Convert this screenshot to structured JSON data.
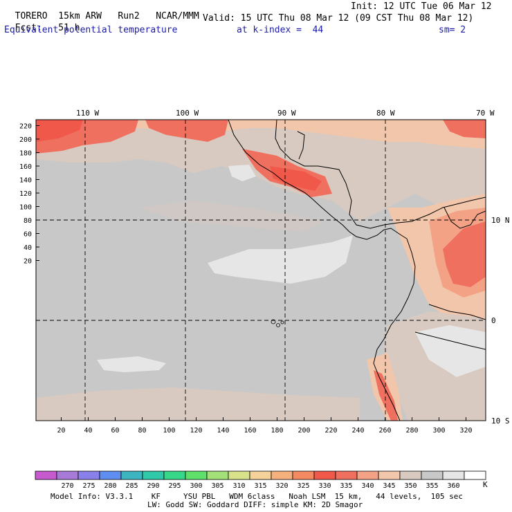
{
  "header": {
    "model": "TORERO",
    "resolution": "15km ARW",
    "run": "Run2",
    "org": "NCAR/MMM",
    "init": "Init: 12 UTC Tue 06 Mar 12",
    "fcst_label": "Fcst:",
    "fcst_value": "51 h",
    "valid": "Valid: 15 UTC Thu 08 Mar 12 (09 CST Thu 08 Mar 12)",
    "field": "Equivalent potential temperature",
    "level": "at k-index =  44",
    "smooth": "sm= 2"
  },
  "map": {
    "top_lon_labels": [
      "110 W",
      "100 W",
      "90 W",
      "80 W",
      "70 W"
    ],
    "right_lat_labels": [
      "10 N",
      "0",
      "10 S"
    ],
    "y_ticks": [
      "220",
      "200",
      "180",
      "160",
      "140",
      "120",
      "100",
      "80",
      "60",
      "40",
      "20"
    ],
    "x_ticks": [
      "20",
      "40",
      "60",
      "80",
      "100",
      "120",
      "140",
      "160",
      "180",
      "200",
      "220",
      "240",
      "260",
      "280",
      "300",
      "320"
    ]
  },
  "colorbar": {
    "unit": "K",
    "labels": [
      "270",
      "275",
      "280",
      "285",
      "290",
      "295",
      "300",
      "305",
      "310",
      "315",
      "320",
      "325",
      "330",
      "335",
      "340",
      "345",
      "350",
      "355",
      "360"
    ],
    "colors": [
      "#c85ad0",
      "#a77ad8",
      "#8a80ea",
      "#5e8ef0",
      "#3cb5c0",
      "#2fc8a8",
      "#37d88a",
      "#5ee06a",
      "#a3e07a",
      "#d8e28a",
      "#f4d29a",
      "#f6b07e",
      "#f48a62",
      "#f0584a",
      "#f07060",
      "#f4a286",
      "#f2c6aa",
      "#d8cac0",
      "#c8c8c8",
      "#e6e6e6",
      "#ffffff"
    ]
  },
  "footer": {
    "line1": "Model Info: V3.3.1    KF     YSU PBL   WDM 6class   Noah LSM  15 km,   44 levels,  105 sec",
    "line2": "LW: Godd SW: Goddard DIFF: simple KM: 2D Smagor"
  }
}
